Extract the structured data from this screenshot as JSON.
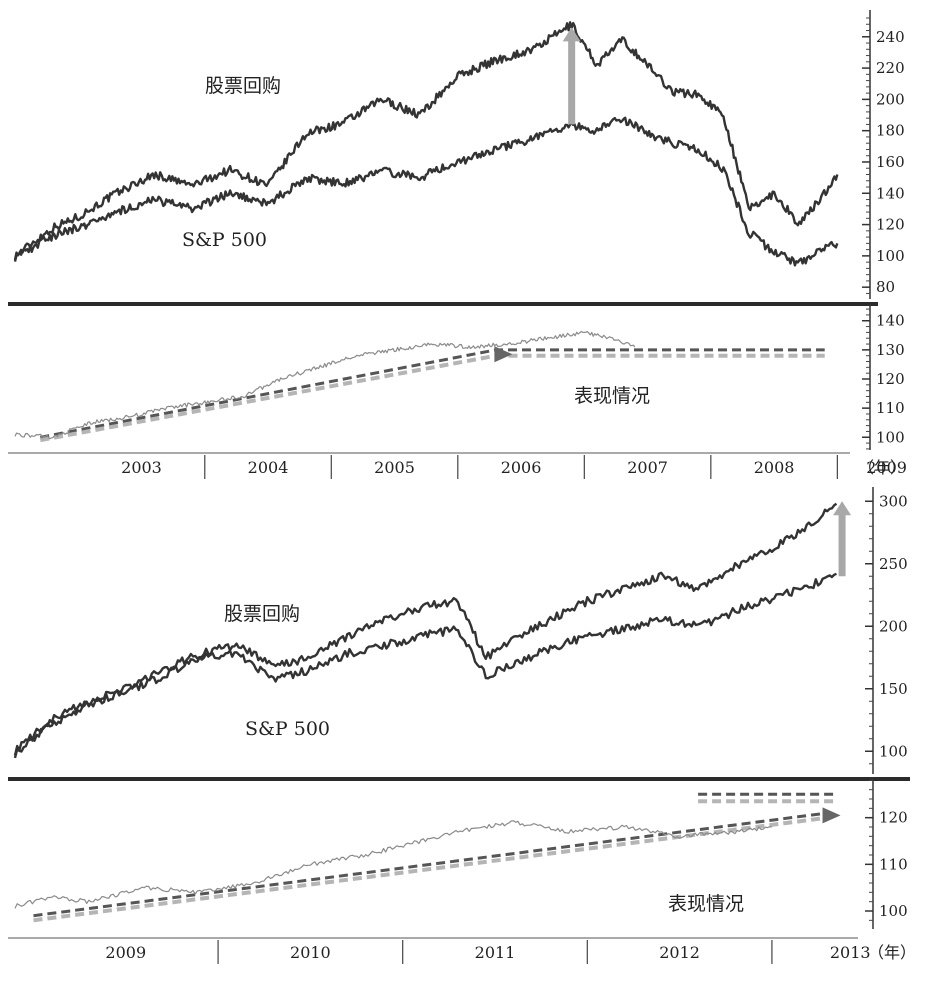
{
  "colors": {
    "series_dark": "#333333",
    "series_light": "#8a8a8a",
    "trend_dark": "#555555",
    "trend_light": "#b5b5b5",
    "arrow": "#a8a8a8",
    "divider": "#2b2b2b"
  },
  "chart_data": [
    {
      "type": "line",
      "title": "",
      "annotations": [
        "股票回购",
        "S&P 500"
      ],
      "x_unit": "year",
      "xlim": [
        2002.5,
        2009.1
      ],
      "ylim": [
        75,
        252
      ],
      "yticks": [
        80,
        100,
        120,
        140,
        160,
        180,
        200,
        220,
        240
      ],
      "grid": false,
      "series": [
        {
          "name": "股票回购",
          "x": [
            2002.5,
            2002.8,
            2003.0,
            2003.3,
            2003.6,
            2003.9,
            2004.2,
            2004.5,
            2004.8,
            2005.1,
            2005.4,
            2005.7,
            2006.0,
            2006.3,
            2006.6,
            2006.9,
            2007.1,
            2007.3,
            2007.5,
            2007.7,
            2007.9,
            2008.1,
            2008.3,
            2008.5,
            2008.7,
            2008.85,
            2009.0
          ],
          "y": [
            100,
            118,
            125,
            140,
            152,
            145,
            155,
            145,
            178,
            185,
            200,
            190,
            215,
            225,
            232,
            248,
            222,
            238,
            222,
            205,
            203,
            190,
            130,
            140,
            120,
            135,
            152
          ]
        },
        {
          "name": "S&P 500",
          "x": [
            2002.5,
            2002.8,
            2003.0,
            2003.3,
            2003.6,
            2003.9,
            2004.2,
            2004.5,
            2004.8,
            2005.1,
            2005.4,
            2005.7,
            2006.0,
            2006.3,
            2006.6,
            2006.9,
            2007.1,
            2007.3,
            2007.5,
            2007.7,
            2007.9,
            2008.1,
            2008.3,
            2008.5,
            2008.7,
            2008.85,
            2009.0
          ],
          "y": [
            99,
            113,
            118,
            128,
            136,
            130,
            140,
            133,
            150,
            146,
            154,
            150,
            160,
            168,
            175,
            183,
            180,
            188,
            178,
            172,
            168,
            155,
            115,
            102,
            95,
            103,
            108
          ]
        }
      ]
    },
    {
      "type": "line",
      "title": "",
      "annotations": [
        "表现情况"
      ],
      "x_unit": "year",
      "xlim": [
        2002.5,
        2009.1
      ],
      "ylim": [
        97,
        143
      ],
      "yticks": [
        100,
        110,
        120,
        130,
        140
      ],
      "grid": false,
      "series": [
        {
          "name": "表现情况",
          "x": [
            2002.5,
            2002.8,
            2003.1,
            2003.4,
            2003.7,
            2004.0,
            2004.3,
            2004.6,
            2004.9,
            2005.2,
            2005.5,
            2005.8,
            2006.1,
            2006.4,
            2006.7,
            2007.0,
            2007.2,
            2007.4
          ],
          "y": [
            101,
            100,
            105,
            107,
            110,
            112,
            114,
            120,
            124,
            128,
            130,
            132,
            131,
            132,
            134,
            136,
            134,
            131
          ]
        }
      ],
      "trend_lines": [
        {
          "style": "dashed-dark",
          "x": [
            2002.7,
            2006.3,
            2008.9
          ],
          "y": [
            100,
            130,
            130
          ]
        },
        {
          "style": "dashed-light",
          "x": [
            2002.7,
            2006.3,
            2008.9
          ],
          "y": [
            99,
            128,
            128
          ]
        }
      ]
    },
    {
      "type": "line",
      "title": "",
      "annotations": [
        "股票回购",
        "S&P 500"
      ],
      "x_unit": "year",
      "xlim": [
        2008.9,
        2013.45
      ],
      "ylim": [
        85,
        305
      ],
      "yticks": [
        100,
        150,
        200,
        250,
        300
      ],
      "grid": false,
      "series": [
        {
          "name": "股票回购",
          "x": [
            2008.9,
            2009.1,
            2009.3,
            2009.5,
            2009.7,
            2009.9,
            2010.1,
            2010.3,
            2010.5,
            2010.7,
            2010.9,
            2011.1,
            2011.3,
            2011.45,
            2011.6,
            2011.8,
            2012.0,
            2012.2,
            2012.4,
            2012.6,
            2012.8,
            2013.0,
            2013.2,
            2013.35
          ],
          "y": [
            100,
            125,
            140,
            150,
            165,
            178,
            185,
            168,
            175,
            192,
            205,
            215,
            220,
            175,
            190,
            205,
            220,
            230,
            240,
            230,
            248,
            262,
            280,
            298
          ]
        },
        {
          "name": "S&P 500",
          "x": [
            2008.9,
            2009.1,
            2009.3,
            2009.5,
            2009.7,
            2009.9,
            2010.1,
            2010.3,
            2010.5,
            2010.7,
            2010.9,
            2011.1,
            2011.3,
            2011.45,
            2011.6,
            2011.8,
            2012.0,
            2012.2,
            2012.4,
            2012.6,
            2012.8,
            2013.0,
            2013.2,
            2013.35
          ],
          "y": [
            98,
            122,
            138,
            148,
            160,
            175,
            178,
            158,
            165,
            178,
            185,
            192,
            198,
            160,
            170,
            182,
            192,
            198,
            205,
            200,
            212,
            222,
            232,
            242
          ]
        }
      ]
    },
    {
      "type": "line",
      "title": "",
      "annotations": [
        "表现情况"
      ],
      "x_unit": "year",
      "xlim": [
        2008.9,
        2013.45
      ],
      "ylim": [
        97,
        127
      ],
      "yticks": [
        100,
        110,
        120
      ],
      "grid": false,
      "series": [
        {
          "name": "表现情况",
          "x": [
            2008.9,
            2009.1,
            2009.3,
            2009.6,
            2009.9,
            2010.2,
            2010.5,
            2010.8,
            2011.1,
            2011.3,
            2011.6,
            2011.9,
            2012.2,
            2012.5,
            2012.8,
            2013.0
          ],
          "y": [
            101,
            103,
            102,
            105,
            104,
            106,
            110,
            112,
            115,
            117,
            119,
            117,
            118,
            116,
            117,
            118
          ]
        }
      ],
      "trend_lines": [
        {
          "style": "dashed-dark",
          "x": [
            2009.0,
            2013.3
          ],
          "y": [
            99,
            121
          ]
        },
        {
          "style": "dashed-light",
          "x": [
            2009.0,
            2013.3
          ],
          "y": [
            98,
            120
          ]
        },
        {
          "style": "dashed-dark",
          "x": [
            2012.6,
            2013.35
          ],
          "y": [
            125,
            125
          ]
        },
        {
          "style": "dashed-light",
          "x": [
            2012.6,
            2013.35
          ],
          "y": [
            123.5,
            123.5
          ]
        }
      ]
    }
  ],
  "x_axes": [
    {
      "years": [
        "2003",
        "2004",
        "2005",
        "2006",
        "2007",
        "2008",
        "2009"
      ],
      "unit": "（年）"
    },
    {
      "years": [
        "2009",
        "2010",
        "2011",
        "2012",
        "2013"
      ],
      "unit": "（年）"
    }
  ]
}
